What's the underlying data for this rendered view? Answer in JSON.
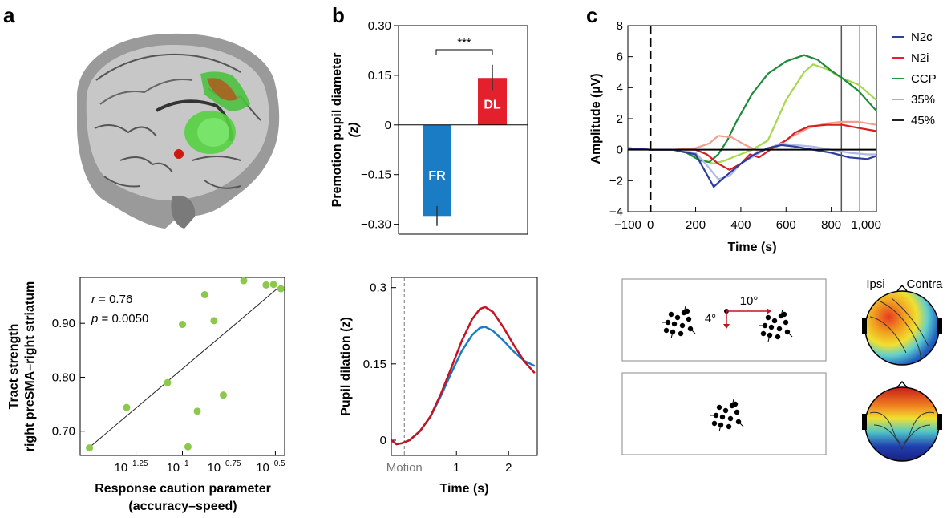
{
  "panel_labels": {
    "a": "a",
    "b": "b",
    "c": "c"
  },
  "chart_data": [
    {
      "id": "scatter",
      "type": "scatter",
      "ylabel_line1": "Tract strength",
      "ylabel_line2": "right preSMA–right striatum",
      "xlabel_line1": "Response caution parameter",
      "xlabel_line2": "(accuracy–speed)",
      "xscale": "log10",
      "xlim": [
        -1.55,
        -0.45
      ],
      "ylim": [
        0.655,
        0.985
      ],
      "xtick_values": [
        -1.25,
        -1,
        -0.75,
        -0.5
      ],
      "xtick_bases": [
        "10",
        "10",
        "10",
        "10"
      ],
      "xtick_exponents": [
        "−1.25",
        "−1",
        "−0.75",
        "−0.5"
      ],
      "yticks": [
        0.7,
        0.8,
        0.9
      ],
      "ytick_labels": [
        "0.70",
        "0.80",
        "0.90"
      ],
      "annotation_r_var": "r",
      "annotation_r_val": " = 0.76",
      "annotation_p_var": "p",
      "annotation_p_val": " = 0.0050",
      "point_color": "#8cc84b",
      "x": [
        -1.5,
        -1.3,
        -1.08,
        -1.0,
        -0.97,
        -0.92,
        -0.88,
        -0.83,
        -0.78,
        -0.67,
        -0.55,
        -0.51,
        -0.47
      ],
      "y": [
        0.669,
        0.744,
        0.79,
        0.898,
        0.671,
        0.737,
        0.953,
        0.905,
        0.767,
        0.979,
        0.971,
        0.972,
        0.964
      ],
      "fit": {
        "x": [
          -1.5,
          -0.47
        ],
        "y": [
          0.67,
          0.97
        ]
      }
    },
    {
      "id": "bar",
      "type": "bar",
      "ylabel_line1": "Premotion pupil diameter",
      "ylabel_line2": "(z)",
      "ylim": [
        -0.33,
        0.3
      ],
      "yticks": [
        -0.3,
        -0.15,
        0,
        0.15,
        0.3
      ],
      "ytick_labels": [
        "−0.30",
        "−0.15",
        "0",
        "0.15",
        "0.30"
      ],
      "categories": [
        "FR",
        "DL"
      ],
      "values": [
        -0.275,
        0.142
      ],
      "err_low": [
        -0.305,
        0.105
      ],
      "err_high": [
        -0.245,
        0.182
      ],
      "colors": [
        "#1b7cc6",
        "#e4202c"
      ],
      "significance": "***"
    },
    {
      "id": "pupil",
      "type": "line",
      "ylabel": "Pupil dilation (z)",
      "xlabel": "Time (s)",
      "xlim": [
        -0.25,
        2.55
      ],
      "ylim": [
        -0.03,
        0.32
      ],
      "xticks": [
        1,
        2
      ],
      "xtick_labels": [
        "1",
        "2"
      ],
      "onset_label": "Motion",
      "yticks": [
        0,
        0.15,
        0.3
      ],
      "ytick_labels": [
        "0",
        "0.15",
        "0.3"
      ],
      "series": [
        {
          "color": "#1b7cc6",
          "x": [
            -0.25,
            -0.15,
            -0.05,
            0.1,
            0.3,
            0.5,
            0.7,
            0.9,
            1.1,
            1.3,
            1.45,
            1.55,
            1.7,
            1.9,
            2.1,
            2.3,
            2.5
          ],
          "y": [
            0.0,
            -0.008,
            -0.006,
            0.0,
            0.018,
            0.046,
            0.087,
            0.132,
            0.175,
            0.207,
            0.221,
            0.223,
            0.215,
            0.196,
            0.174,
            0.156,
            0.146
          ]
        },
        {
          "color": "#c41424",
          "x": [
            -0.25,
            -0.15,
            -0.05,
            0.1,
            0.3,
            0.5,
            0.7,
            0.9,
            1.1,
            1.3,
            1.45,
            1.55,
            1.7,
            1.9,
            2.1,
            2.3,
            2.5
          ],
          "y": [
            0.0,
            -0.008,
            -0.006,
            0.0,
            0.018,
            0.047,
            0.091,
            0.142,
            0.195,
            0.238,
            0.258,
            0.262,
            0.252,
            0.222,
            0.187,
            0.155,
            0.132
          ]
        }
      ]
    },
    {
      "id": "erp",
      "type": "line",
      "ylabel": "Amplitude (µV)",
      "xlabel": "Time (s)",
      "xlim": [
        -100,
        1000
      ],
      "ylim": [
        -4,
        8
      ],
      "xticks": [
        -100,
        0,
        200,
        400,
        600,
        800,
        1000
      ],
      "xtick_labels": [
        "−100",
        "0",
        "200",
        "400",
        "600",
        "800",
        "1,000"
      ],
      "yticks": [
        -4,
        -2,
        0,
        2,
        4,
        6,
        8
      ],
      "ytick_labels": [
        "−4",
        "−2",
        "0",
        "2",
        "4",
        "6",
        "8"
      ],
      "vlines": [
        {
          "x": 845,
          "color": "#555555"
        },
        {
          "x": 925,
          "color": "#aaaaaa"
        }
      ],
      "legend": [
        {
          "label": "N2c",
          "color": "#2b3f9e"
        },
        {
          "label": "N2i",
          "color": "#e4202c"
        },
        {
          "label": "CCP",
          "color": "#1e9a3c"
        },
        {
          "label": "35%",
          "color": "#b0b0b0"
        },
        {
          "label": "45%",
          "color": "#222222"
        }
      ],
      "series": [
        {
          "color": "#a8d84e",
          "x": [
            -100,
            0,
            100,
            160,
            220,
            280,
            330,
            380,
            450,
            520,
            600,
            680,
            720,
            780,
            850,
            920,
            1000
          ],
          "y": [
            0.1,
            0.0,
            0.0,
            -0.1,
            -0.6,
            -0.9,
            -0.7,
            -0.4,
            0.0,
            0.6,
            3.2,
            5.0,
            5.5,
            5.2,
            4.6,
            4.2,
            3.2
          ]
        },
        {
          "color": "#1e8a3c",
          "x": [
            -100,
            0,
            100,
            160,
            220,
            260,
            300,
            340,
            380,
            450,
            520,
            600,
            680,
            740,
            800,
            850,
            920,
            1000
          ],
          "y": [
            0.1,
            0.0,
            0.0,
            -0.2,
            -0.7,
            -0.8,
            -0.3,
            0.6,
            1.8,
            3.6,
            4.9,
            5.7,
            6.1,
            5.8,
            5.1,
            4.6,
            3.8,
            2.5
          ]
        },
        {
          "color": "#f0a090",
          "x": [
            -100,
            0,
            100,
            200,
            260,
            300,
            360,
            420,
            480,
            560,
            620,
            700,
            780,
            850,
            920,
            1000
          ],
          "y": [
            0.1,
            0.0,
            0.0,
            0.1,
            0.4,
            0.9,
            0.8,
            0.3,
            -0.1,
            0.2,
            0.8,
            1.4,
            1.7,
            1.8,
            1.8,
            1.6
          ]
        },
        {
          "color": "#d42020",
          "x": [
            -100,
            0,
            100,
            200,
            250,
            300,
            350,
            400,
            440,
            480,
            520,
            560,
            600,
            640,
            700,
            780,
            850,
            920,
            1000
          ],
          "y": [
            0.1,
            0.0,
            0.0,
            0.0,
            -0.3,
            -0.9,
            -1.3,
            -0.9,
            -0.3,
            -0.5,
            -0.1,
            0.3,
            0.6,
            1.1,
            1.5,
            1.6,
            1.6,
            1.4,
            1.2
          ]
        },
        {
          "color": "#b0b8e8",
          "x": [
            -100,
            0,
            100,
            200,
            250,
            300,
            350,
            400,
            460,
            520,
            580,
            640,
            720,
            800,
            880,
            960,
            1000
          ],
          "y": [
            0.1,
            0.0,
            0.0,
            -0.2,
            -1.0,
            -1.9,
            -1.7,
            -0.9,
            -0.4,
            0.1,
            0.4,
            0.3,
            0.2,
            0.0,
            -0.2,
            -0.3,
            -0.3
          ]
        },
        {
          "color": "#2b3f9e",
          "x": [
            -100,
            0,
            100,
            200,
            250,
            280,
            310,
            350,
            400,
            460,
            520,
            580,
            640,
            720,
            800,
            880,
            960,
            1000
          ],
          "y": [
            0.1,
            0.0,
            0.0,
            -0.3,
            -1.6,
            -2.4,
            -2.0,
            -1.5,
            -0.9,
            -0.3,
            0.1,
            0.3,
            0.2,
            0.0,
            -0.2,
            -0.5,
            -0.6,
            -0.4
          ]
        }
      ],
      "zero_line_color": "#000000"
    }
  ],
  "stimulus": {
    "label_horizontal": "10°",
    "label_vertical": "4°",
    "arrow_color": "#c41424"
  },
  "topo": {
    "label_ipsi": "Ipsi",
    "label_contra": "Contra"
  }
}
